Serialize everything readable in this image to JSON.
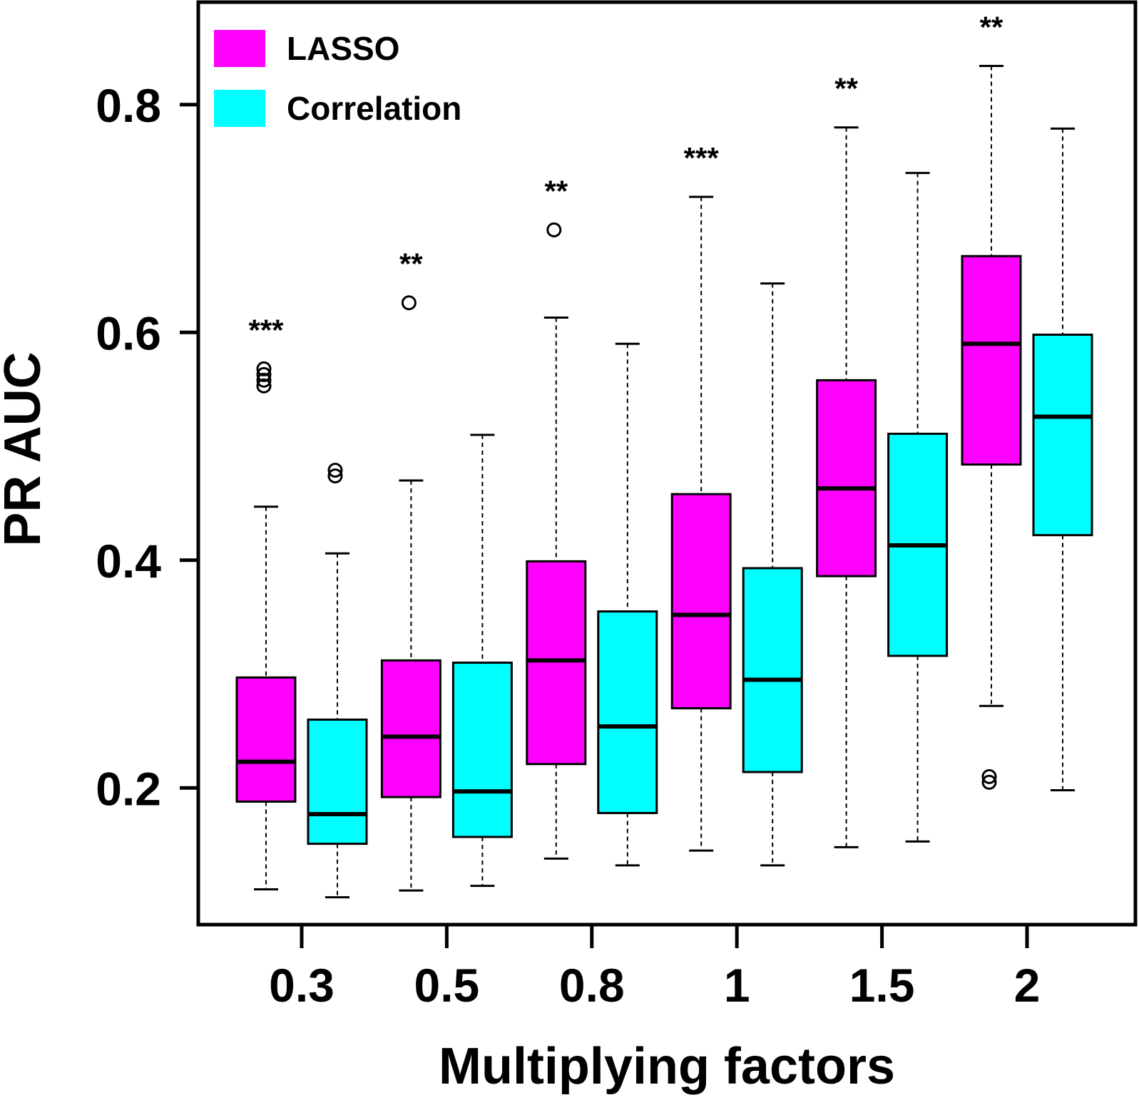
{
  "chart_data": {
    "type": "boxplot",
    "xlabel": "Multiplying factors",
    "ylabel": "PR AUC",
    "ylim": [
      0.08,
      0.89
    ],
    "yticks": [
      "0.2",
      "0.4",
      "0.6",
      "0.8"
    ],
    "categories": [
      "0.3",
      "0.5",
      "0.8",
      "1",
      "1.5",
      "2"
    ],
    "legend": {
      "position": "top-left",
      "entries": [
        {
          "name": "LASSO",
          "color": "#ff00ff"
        },
        {
          "name": "Correlation",
          "color": "#00ffff"
        }
      ]
    },
    "significance": [
      "***",
      "**",
      "**",
      "***",
      "**",
      "**"
    ],
    "series": [
      {
        "name": "LASSO",
        "color": "#ff00ff",
        "boxes": [
          {
            "whisker_low": 0.111,
            "q1": 0.188,
            "median": 0.223,
            "q3": 0.297,
            "whisker_high": 0.447,
            "outliers": [
              0.553,
              0.558,
              0.563,
              0.568
            ]
          },
          {
            "whisker_low": 0.11,
            "q1": 0.192,
            "median": 0.245,
            "q3": 0.312,
            "whisker_high": 0.47,
            "outliers": [
              0.626
            ]
          },
          {
            "whisker_low": 0.138,
            "q1": 0.221,
            "median": 0.312,
            "q3": 0.399,
            "whisker_high": 0.613,
            "outliers": [
              0.69
            ]
          },
          {
            "whisker_low": 0.145,
            "q1": 0.27,
            "median": 0.352,
            "q3": 0.458,
            "whisker_high": 0.719,
            "outliers": []
          },
          {
            "whisker_low": 0.148,
            "q1": 0.386,
            "median": 0.463,
            "q3": 0.558,
            "whisker_high": 0.78,
            "outliers": []
          },
          {
            "whisker_low": 0.272,
            "q1": 0.484,
            "median": 0.59,
            "q3": 0.667,
            "whisker_high": 0.834,
            "outliers": [
              0.205,
              0.21
            ]
          }
        ]
      },
      {
        "name": "Correlation",
        "color": "#00ffff",
        "boxes": [
          {
            "whisker_low": 0.104,
            "q1": 0.151,
            "median": 0.177,
            "q3": 0.26,
            "whisker_high": 0.406,
            "outliers": [
              0.474,
              0.479
            ]
          },
          {
            "whisker_low": 0.114,
            "q1": 0.157,
            "median": 0.197,
            "q3": 0.31,
            "whisker_high": 0.51,
            "outliers": []
          },
          {
            "whisker_low": 0.132,
            "q1": 0.178,
            "median": 0.254,
            "q3": 0.355,
            "whisker_high": 0.59,
            "outliers": []
          },
          {
            "whisker_low": 0.132,
            "q1": 0.214,
            "median": 0.295,
            "q3": 0.393,
            "whisker_high": 0.643,
            "outliers": []
          },
          {
            "whisker_low": 0.153,
            "q1": 0.316,
            "median": 0.413,
            "q3": 0.511,
            "whisker_high": 0.74,
            "outliers": []
          },
          {
            "whisker_low": 0.198,
            "q1": 0.422,
            "median": 0.526,
            "q3": 0.598,
            "whisker_high": 0.779,
            "outliers": []
          }
        ]
      }
    ]
  }
}
